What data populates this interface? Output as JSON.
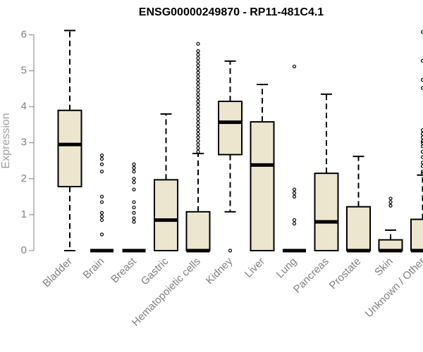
{
  "chart_data": {
    "type": "box",
    "title": "ENSG00000249870 - RP11-481C4.1",
    "ylabel": "Expression",
    "xlabel": "",
    "ylim": [
      0,
      6.3
    ],
    "yticks": [
      0,
      1,
      2,
      3,
      4,
      5,
      6
    ],
    "box_fill": "#ede6cf",
    "stroke_color": "#000000",
    "text_color": "#808080",
    "categories": [
      "Bladder",
      "Brain",
      "Breast",
      "Gastric",
      "Hematopoietic cells",
      "Kidney",
      "Liver",
      "Lung",
      "Pancreas",
      "Prostate",
      "Skin",
      "Unknown / Other"
    ],
    "boxes": [
      {
        "category": "Bladder",
        "min": 0.0,
        "q1": 1.78,
        "median": 2.95,
        "q3": 3.9,
        "max": 6.12,
        "outliers": []
      },
      {
        "category": "Brain",
        "min": 0.0,
        "q1": 0.0,
        "median": 0.0,
        "q3": 0.0,
        "max": 0.0,
        "outliers": [
          0.45,
          0.85,
          0.95,
          1.05,
          1.35,
          1.5,
          2.2,
          2.4,
          2.55,
          2.65
        ]
      },
      {
        "category": "Breast",
        "min": 0.0,
        "q1": 0.0,
        "median": 0.0,
        "q3": 0.0,
        "max": 0.0,
        "outliers": [
          0.8,
          0.9,
          1.05,
          1.2,
          1.35,
          1.7,
          1.9,
          2.0,
          2.2,
          2.3,
          2.4
        ]
      },
      {
        "category": "Gastric",
        "min": 0.0,
        "q1": 0.0,
        "median": 0.85,
        "q3": 1.97,
        "max": 3.8,
        "outliers": []
      },
      {
        "category": "Hematopoietic cells",
        "min": 0.0,
        "q1": 0.0,
        "median": 0.0,
        "q3": 1.08,
        "max": 2.7,
        "outliers": [
          2.75,
          2.85,
          2.95,
          3.05,
          3.15,
          3.25,
          3.35,
          3.45,
          3.55,
          3.65,
          3.75,
          3.85,
          3.95,
          4.05,
          4.15,
          4.25,
          4.35,
          4.45,
          4.55,
          4.65,
          4.75,
          4.85,
          4.95,
          5.05,
          5.15,
          5.25,
          5.35,
          5.45,
          5.55,
          5.75
        ]
      },
      {
        "category": "Kidney",
        "min": 1.08,
        "q1": 2.67,
        "median": 3.57,
        "q3": 4.15,
        "max": 5.27,
        "outliers": [
          0.0
        ]
      },
      {
        "category": "Liver",
        "min": 0.0,
        "q1": 0.0,
        "median": 2.38,
        "q3": 3.58,
        "max": 4.62,
        "outliers": []
      },
      {
        "category": "Lung",
        "min": 0.0,
        "q1": 0.0,
        "median": 0.0,
        "q3": 0.0,
        "max": 0.0,
        "outliers": [
          0.75,
          0.85,
          1.5,
          1.6,
          1.7,
          5.12
        ]
      },
      {
        "category": "Pancreas",
        "min": 0.0,
        "q1": 0.0,
        "median": 0.8,
        "q3": 2.15,
        "max": 4.35,
        "outliers": []
      },
      {
        "category": "Prostate",
        "min": 0.0,
        "q1": 0.0,
        "median": 0.0,
        "q3": 1.22,
        "max": 2.62,
        "outliers": []
      },
      {
        "category": "Skin",
        "min": 0.0,
        "q1": 0.0,
        "median": 0.0,
        "q3": 0.3,
        "max": 0.57,
        "outliers": [
          1.25,
          1.35,
          1.45
        ]
      },
      {
        "category": "Unknown / Other",
        "min": 0.0,
        "q1": 0.0,
        "median": 0.0,
        "q3": 0.87,
        "max": 2.1,
        "outliers": [
          2.15,
          2.2,
          2.35,
          2.45,
          2.6,
          2.75,
          2.9,
          3.0,
          3.05,
          3.15,
          3.25,
          3.35,
          4.52,
          4.75,
          5.28,
          6.08
        ]
      }
    ]
  }
}
